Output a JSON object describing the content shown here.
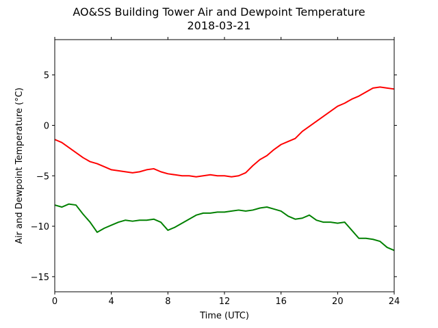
{
  "chart_data": {
    "type": "line",
    "title": "AO&SS Building Tower Air and Dewpoint Temperature",
    "subtitle": "2018-03-21",
    "xlabel": "Time (UTC)",
    "ylabel": "Air and Dewpoint Temperature (°C)",
    "xlim": [
      0,
      24
    ],
    "ylim": [
      -16.5,
      8.5
    ],
    "xticks": [
      0,
      4,
      8,
      12,
      16,
      20,
      24
    ],
    "yticks": [
      5,
      0,
      -5,
      -10,
      -15
    ],
    "ytick_labels": [
      "5",
      "0",
      "−5",
      "−10",
      "−15"
    ],
    "grid": false,
    "legend": "none",
    "series": [
      {
        "color": "#ff0000",
        "x": [
          0,
          0.5,
          1,
          1.5,
          2,
          2.5,
          3,
          3.5,
          4,
          4.5,
          5,
          5.5,
          6,
          6.5,
          7,
          7.5,
          8,
          8.5,
          9,
          9.5,
          10,
          10.5,
          11,
          11.5,
          12,
          12.5,
          13,
          13.5,
          14,
          14.5,
          15,
          15.5,
          16,
          16.5,
          17,
          17.5,
          18,
          18.5,
          19,
          19.5,
          20,
          20.5,
          21,
          21.5,
          22,
          22.5,
          23,
          23.5,
          24
        ],
        "y": [
          -1.4,
          -1.7,
          -2.2,
          -2.7,
          -3.2,
          -3.6,
          -3.8,
          -4.1,
          -4.4,
          -4.5,
          -4.6,
          -4.7,
          -4.6,
          -4.4,
          -4.3,
          -4.6,
          -4.8,
          -4.9,
          -5.0,
          -5.0,
          -5.1,
          -5.0,
          -4.9,
          -5.0,
          -5.0,
          -5.1,
          -5.0,
          -4.7,
          -4.0,
          -3.4,
          -3.0,
          -2.4,
          -1.9,
          -1.6,
          -1.3,
          -0.6,
          -0.1,
          0.4,
          0.9,
          1.4,
          1.9,
          2.2,
          2.6,
          2.9,
          3.3,
          3.7,
          3.8,
          3.7,
          3.6
        ]
      },
      {
        "color": "#008000",
        "x": [
          0,
          0.5,
          1,
          1.5,
          2,
          2.5,
          3,
          3.5,
          4,
          4.5,
          5,
          5.5,
          6,
          6.5,
          7,
          7.5,
          8,
          8.5,
          9,
          9.5,
          10,
          10.5,
          11,
          11.5,
          12,
          12.5,
          13,
          13.5,
          14,
          14.5,
          15,
          15.5,
          16,
          16.5,
          17,
          17.5,
          18,
          18.5,
          19,
          19.5,
          20,
          20.5,
          21,
          21.5,
          22,
          22.5,
          23,
          23.5,
          24
        ],
        "y": [
          -7.9,
          -8.1,
          -7.8,
          -7.9,
          -8.8,
          -9.6,
          -10.6,
          -10.2,
          -9.9,
          -9.6,
          -9.4,
          -9.5,
          -9.4,
          -9.4,
          -9.3,
          -9.6,
          -10.4,
          -10.1,
          -9.7,
          -9.3,
          -8.9,
          -8.7,
          -8.7,
          -8.6,
          -8.6,
          -8.5,
          -8.4,
          -8.5,
          -8.4,
          -8.2,
          -8.1,
          -8.3,
          -8.5,
          -9.0,
          -9.3,
          -9.2,
          -8.9,
          -9.4,
          -9.6,
          -9.6,
          -9.7,
          -9.6,
          -10.4,
          -11.2,
          -11.2,
          -11.3,
          -11.5,
          -12.1,
          -12.4
        ]
      }
    ]
  }
}
